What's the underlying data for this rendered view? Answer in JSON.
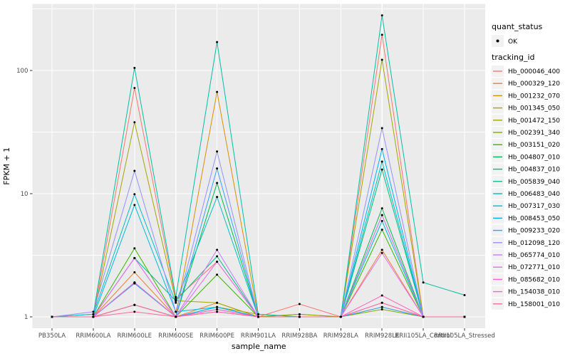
{
  "chart_data": {
    "type": "line",
    "title": "",
    "xlabel": "sample_name",
    "ylabel": "FPKM + 1",
    "y_scale": "log10",
    "y_ticks": [
      1,
      10,
      100
    ],
    "y_tick_labels": [
      "1",
      "10",
      "100"
    ],
    "y_minor_ticks": [
      3.162,
      31.62,
      316.2
    ],
    "ylim": [
      0.81,
      345
    ],
    "grid": "on",
    "panel_bg": "#EBEBEB",
    "grid_color": "#FFFFFF",
    "tick_label_color": "#4D4D4D",
    "axis_title_color": "#000000",
    "point_color": "#000000",
    "legend_position": "right",
    "legend_key_bg": "#F2F2F2",
    "categories": [
      "PB350LA",
      "RRIM600LA",
      "RRIM600LE",
      "RRIM600SE",
      "RRIM600PE",
      "RRIM901LA",
      "RRIM928BA",
      "RRIM928LA",
      "RRIM928LE",
      "RRII105LA_Control",
      "RRII105LA_Stressed"
    ],
    "series": [
      {
        "name": "Hb_000046_400",
        "color": "#F8766D",
        "values": [
          1.0,
          1.0,
          72,
          1.4,
          2.8,
          1.0,
          1.27,
          1.0,
          195,
          1.0,
          1.0
        ]
      },
      {
        "name": "Hb_000329_120",
        "color": "#EA8331",
        "values": [
          1.0,
          1.0,
          2.3,
          1.0,
          1.3,
          1.0,
          1.05,
          1.0,
          3.5,
          1.0,
          1.0
        ]
      },
      {
        "name": "Hb_001232_070",
        "color": "#D89000",
        "values": [
          1.0,
          1.0,
          1.9,
          1.0,
          67,
          1.0,
          1.0,
          1.0,
          6.7,
          1.0,
          1.0
        ]
      },
      {
        "name": "Hb_001345_050",
        "color": "#C09B00",
        "values": [
          1.0,
          1.0,
          1.25,
          1.0,
          1.2,
          1.05,
          1.0,
          1.0,
          1.2,
          1.0,
          1.0
        ]
      },
      {
        "name": "Hb_001472_150",
        "color": "#A3A500",
        "values": [
          1.0,
          1.0,
          38,
          1.35,
          1.3,
          1.0,
          1.0,
          1.0,
          122,
          1.0,
          1.0
        ]
      },
      {
        "name": "Hb_002391_340",
        "color": "#7CAE00",
        "values": [
          1.0,
          1.0,
          1.25,
          1.0,
          1.15,
          1.0,
          1.05,
          1.0,
          1.15,
          1.0,
          1.0
        ]
      },
      {
        "name": "Hb_003151_020",
        "color": "#39B600",
        "values": [
          1.0,
          1.0,
          3.6,
          1.0,
          2.2,
          1.0,
          1.0,
          1.0,
          5.1,
          1.0,
          1.0
        ]
      },
      {
        "name": "Hb_004807_010",
        "color": "#00BB4E",
        "values": [
          1.0,
          1.0,
          1.9,
          1.0,
          12.2,
          1.0,
          1.0,
          1.0,
          7.6,
          1.0,
          1.0
        ]
      },
      {
        "name": "Hb_004837_010",
        "color": "#00BF7D",
        "values": [
          1.0,
          1.0,
          3.0,
          1.35,
          3.1,
          1.0,
          1.0,
          1.0,
          15.7,
          1.0,
          1.0
        ]
      },
      {
        "name": "Hb_005839_040",
        "color": "#00C1A3",
        "values": [
          1.0,
          1.05,
          105,
          1.45,
          170,
          1.05,
          1.0,
          1.0,
          280,
          1.9,
          1.5
        ]
      },
      {
        "name": "Hb_006483_040",
        "color": "#00BFC4",
        "values": [
          1.0,
          1.05,
          9.9,
          1.3,
          9.4,
          1.0,
          1.0,
          1.0,
          18.2,
          1.0,
          1.0
        ]
      },
      {
        "name": "Hb_007317_030",
        "color": "#00BAE0",
        "values": [
          1.0,
          1.0,
          8.1,
          1.1,
          1.2,
          1.0,
          1.0,
          1.0,
          6.0,
          1.0,
          1.0
        ]
      },
      {
        "name": "Hb_008453_050",
        "color": "#00B0F6",
        "values": [
          1.0,
          1.0,
          1.87,
          1.0,
          1.2,
          1.0,
          1.0,
          1.0,
          23,
          1.0,
          1.0
        ]
      },
      {
        "name": "Hb_009233_020",
        "color": "#35A2FF",
        "values": [
          1.0,
          1.0,
          1.87,
          1.0,
          16,
          1.0,
          1.0,
          1.0,
          1.2,
          1.0,
          1.0
        ]
      },
      {
        "name": "Hb_012098_120",
        "color": "#9590FF",
        "values": [
          1.0,
          1.1,
          15.3,
          1.1,
          22,
          1.0,
          1.0,
          1.0,
          34,
          1.0,
          1.0
        ]
      },
      {
        "name": "Hb_065774_010",
        "color": "#C77CFF",
        "values": [
          1.0,
          1.0,
          3.0,
          1.0,
          3.5,
          1.0,
          1.0,
          1.0,
          6.7,
          1.0,
          1.0
        ]
      },
      {
        "name": "Hb_072771_010",
        "color": "#E76BF3",
        "values": [
          1.0,
          1.0,
          3.0,
          1.0,
          2.8,
          1.0,
          1.0,
          1.0,
          3.3,
          1.0,
          1.0
        ]
      },
      {
        "name": "Hb_085682_010",
        "color": "#FA62DB",
        "values": [
          1.0,
          1.0,
          1.9,
          1.0,
          1.15,
          1.0,
          1.0,
          1.0,
          1.3,
          1.0,
          1.0
        ]
      },
      {
        "name": "Hb_154038_010",
        "color": "#FF62BC",
        "values": [
          1.0,
          1.0,
          1.25,
          1.0,
          1.1,
          1.0,
          1.0,
          1.0,
          1.49,
          1.0,
          1.0
        ]
      },
      {
        "name": "Hb_158001_010",
        "color": "#FF6A98",
        "values": [
          1.0,
          1.0,
          1.1,
          1.0,
          1.1,
          1.0,
          1.0,
          1.0,
          1.3,
          1.0,
          1.0
        ]
      }
    ],
    "legend": {
      "quant_status_title": "quant_status",
      "quant_status_items": [
        {
          "label": "OK",
          "marker": "black-point"
        }
      ],
      "tracking_id_title": "tracking_id"
    }
  }
}
